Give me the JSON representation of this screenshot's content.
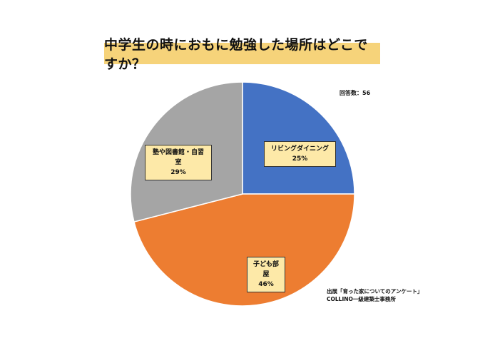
{
  "title": "中学生の時におもに勉強した場所はどこですか？",
  "respondents": "回答数：56",
  "source": {
    "line1": "出展「育った家についてのアンケート」",
    "line2": "COLLINO一級建築士事務所"
  },
  "slices": [
    {
      "label": "リビングダイニング",
      "percent_label": "25%",
      "color": "#4472c4"
    },
    {
      "label": "子ども部屋",
      "percent_label": "46%",
      "color": "#ed7d31"
    },
    {
      "label": "塾や図書館・自習室",
      "percent_label": "29%",
      "color": "#a5a5a5"
    }
  ],
  "chart_data": {
    "type": "pie",
    "title": "中学生の時におもに勉強した場所はどこですか？",
    "categories": [
      "リビングダイニング",
      "子ども部屋",
      "塾や図書館・自習室"
    ],
    "values": [
      25,
      46,
      29
    ],
    "unit": "%",
    "colors": [
      "#4472c4",
      "#ed7d31",
      "#a5a5a5"
    ],
    "start_angle": "12 o'clock, clockwise",
    "annotations": [
      "回答数：56",
      "出展「育った家についてのアンケート」",
      "COLLINO一級建築士事務所"
    ],
    "legend": "none (data labels in boxes)"
  }
}
